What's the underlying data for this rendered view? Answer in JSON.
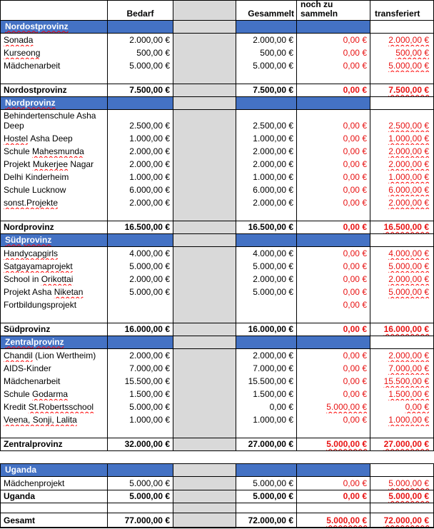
{
  "colors": {
    "band_blue": "#4472c4",
    "spacer_gray": "#d9d9d9",
    "value_red": "#e81313",
    "squiggle_red": "#ff0000"
  },
  "column_headers": {
    "bedarf": "Bedarf",
    "gesammelt": "Gesammelt",
    "noch_zu_sammeln": "noch zu sammeln",
    "transferiert": "transferiert"
  },
  "sections": [
    {
      "title": "Nordostprovinz",
      "title_wavy": true,
      "gap_before": false,
      "blank_before_total": true,
      "rows": [
        {
          "name": [
            {
              "text": "Sonada",
              "wavy": true
            }
          ],
          "bedarf": "2.000,00 €",
          "gesammelt": "2.000,00 €",
          "noch": "0,00 €",
          "noch_wavy": false,
          "transferiert": "2.000,00 €",
          "transferiert_wavy": true
        },
        {
          "name": [
            {
              "text": "Kurseong",
              "wavy": true
            }
          ],
          "bedarf": "500,00 €",
          "gesammelt": "500,00 €",
          "noch": "0,00 €",
          "noch_wavy": false,
          "transferiert": "500,00 €",
          "transferiert_wavy": true
        },
        {
          "name": [
            {
              "text": "Mädchenarbeit",
              "wavy": false
            }
          ],
          "bedarf": "5.000,00 €",
          "gesammelt": "5.000,00 €",
          "noch": "0,00 €",
          "noch_wavy": false,
          "transferiert": "5.000,00 €",
          "transferiert_wavy": true
        }
      ],
      "total": {
        "label": "Nordostprovinz",
        "bedarf": "7.500,00 €",
        "gesammelt": "7.500,00 €",
        "noch": "0,00 €",
        "noch_wavy": false,
        "transferiert": "7.500,00 €",
        "transferiert_wavy": true
      }
    },
    {
      "title": "Nordprovinz",
      "title_wavy": true,
      "gap_before": false,
      "blank_before_total": true,
      "rows": [
        {
          "name": [
            {
              "text": "Behindertenschule Asha Deep",
              "wavy": false
            }
          ],
          "tall": true,
          "bedarf": "2.500,00 €",
          "gesammelt": "2.500,00 €",
          "noch": "0,00 €",
          "noch_wavy": false,
          "transferiert": "2.500,00 €",
          "transferiert_wavy": true
        },
        {
          "name": [
            {
              "text": "Hostel",
              "wavy": true
            },
            {
              "text": " Asha Deep",
              "wavy": false
            }
          ],
          "bedarf": "1.000,00 €",
          "gesammelt": "1.000,00 €",
          "noch": "0,00 €",
          "noch_wavy": false,
          "transferiert": "1.000,00 €",
          "transferiert_wavy": true
        },
        {
          "name": [
            {
              "text": "Schule ",
              "wavy": false
            },
            {
              "text": "Mahesmunda",
              "wavy": true
            }
          ],
          "bedarf": "2.000,00 €",
          "gesammelt": "2.000,00 €",
          "noch": "0,00 €",
          "noch_wavy": false,
          "transferiert": "2.000,00 €",
          "transferiert_wavy": true
        },
        {
          "name": [
            {
              "text": "Projekt ",
              "wavy": false
            },
            {
              "text": "Mukerjee",
              "wavy": true
            },
            {
              "text": " Nagar",
              "wavy": false
            }
          ],
          "bedarf": "2.000,00 €",
          "gesammelt": "2.000,00 €",
          "noch": "0,00 €",
          "noch_wavy": false,
          "transferiert": "2.000,00 €",
          "transferiert_wavy": true
        },
        {
          "name": [
            {
              "text": "Delhi Kinderheim",
              "wavy": false
            }
          ],
          "bedarf": "1.000,00 €",
          "gesammelt": "1.000,00 €",
          "noch": "0,00 €",
          "noch_wavy": false,
          "transferiert": "1.000,00 €",
          "transferiert_wavy": true
        },
        {
          "name": [
            {
              "text": "Schule Lucknow",
              "wavy": false
            }
          ],
          "bedarf": "6.000,00 €",
          "gesammelt": "6.000,00 €",
          "noch": "0,00 €",
          "noch_wavy": false,
          "transferiert": "6.000,00 €",
          "transferiert_wavy": true
        },
        {
          "name": [
            {
              "text": "sonst.Projekte",
              "wavy": true
            }
          ],
          "bedarf": "2.000,00 €",
          "gesammelt": "2.000,00 €",
          "noch": "0,00 €",
          "noch_wavy": false,
          "transferiert": "2.000,00 €",
          "transferiert_wavy": true
        }
      ],
      "total": {
        "label": "Nordprovinz",
        "bedarf": "16.500,00 €",
        "gesammelt": "16.500,00 €",
        "noch": "0,00 €",
        "noch_wavy": false,
        "transferiert": "16.500,00 €",
        "transferiert_wavy": true
      }
    },
    {
      "title": "Südprovinz",
      "title_wavy": true,
      "gap_before": false,
      "blank_before_total": true,
      "rows": [
        {
          "name": [
            {
              "text": "Handycapgirls",
              "wavy": true
            }
          ],
          "bedarf": "4.000,00 €",
          "gesammelt": "4.000,00 €",
          "noch": "0,00 €",
          "noch_wavy": false,
          "transferiert": "4.000,00 €",
          "transferiert_wavy": true
        },
        {
          "name": [
            {
              "text": "Satgayamaprojekt",
              "wavy": true
            }
          ],
          "bedarf": "5.000,00 €",
          "gesammelt": "5.000,00 €",
          "noch": "0,00 €",
          "noch_wavy": false,
          "transferiert": "5.000,00 €",
          "transferiert_wavy": true
        },
        {
          "name": [
            {
              "text": "School in ",
              "wavy": false
            },
            {
              "text": "Orikottai",
              "wavy": true
            }
          ],
          "bedarf": "2.000,00 €",
          "gesammelt": "2.000,00 €",
          "noch": "0,00 €",
          "noch_wavy": false,
          "transferiert": "2.000,00 €",
          "transferiert_wavy": true
        },
        {
          "name": [
            {
              "text": "Projekt Asha ",
              "wavy": false
            },
            {
              "text": "Niketan",
              "wavy": true
            }
          ],
          "bedarf": "5.000,00 €",
          "gesammelt": "5.000,00 €",
          "noch": "0,00 €",
          "noch_wavy": false,
          "transferiert": "5.000,00 €",
          "transferiert_wavy": true
        },
        {
          "name": [
            {
              "text": "Fortbildungsprojekt",
              "wavy": false
            }
          ],
          "bedarf": "",
          "gesammelt": "",
          "noch": "0,00 €",
          "noch_wavy": false,
          "transferiert": "",
          "transferiert_wavy": false
        }
      ],
      "total": {
        "label": "Südprovinz",
        "bedarf": "16.000,00 €",
        "gesammelt": "16.000,00 €",
        "noch": "0,00 €",
        "noch_wavy": false,
        "transferiert": "16.000,00 €",
        "transferiert_wavy": true
      }
    },
    {
      "title": "Zentralprovinz",
      "title_wavy": true,
      "gap_before": false,
      "blank_before_total": true,
      "rows": [
        {
          "name": [
            {
              "text": "Chandil",
              "wavy": true
            },
            {
              "text": " (Lion Wertheim)",
              "wavy": false
            }
          ],
          "bedarf": "2.000,00 €",
          "gesammelt": "2.000,00 €",
          "noch": "0,00 €",
          "noch_wavy": false,
          "transferiert": "2.000,00 €",
          "transferiert_wavy": true
        },
        {
          "name": [
            {
              "text": "AIDS-Kinder",
              "wavy": false
            }
          ],
          "bedarf": "7.000,00 €",
          "gesammelt": "7.000,00 €",
          "noch": "0,00 €",
          "noch_wavy": false,
          "transferiert": "7.000,00 €",
          "transferiert_wavy": true
        },
        {
          "name": [
            {
              "text": "Mädchenarbeit",
              "wavy": false
            }
          ],
          "bedarf": "15.500,00 €",
          "gesammelt": "15.500,00 €",
          "noch": "0,00 €",
          "noch_wavy": false,
          "transferiert": "15.500,00 €",
          "transferiert_wavy": true
        },
        {
          "name": [
            {
              "text": "Schule ",
              "wavy": false
            },
            {
              "text": "Godarma",
              "wavy": true
            }
          ],
          "bedarf": "1.500,00 €",
          "gesammelt": "1.500,00 €",
          "noch": "0,00 €",
          "noch_wavy": false,
          "transferiert": "1.500,00 €",
          "transferiert_wavy": true
        },
        {
          "name": [
            {
              "text": "Kredit ",
              "wavy": false
            },
            {
              "text": "St.Robertsschool",
              "wavy": true
            }
          ],
          "bedarf": "5.000,00 €",
          "gesammelt": "0,00 €",
          "noch": "5.000,00 €",
          "noch_wavy": true,
          "transferiert": "0,00 €",
          "transferiert_wavy": true
        },
        {
          "name": [
            {
              "text": "Veena, Sonji, Lalita",
              "wavy": true
            }
          ],
          "bedarf": "1.000,00 €",
          "gesammelt": "1.000,00 €",
          "noch": "0,00 €",
          "noch_wavy": false,
          "transferiert": "1.000,00 €",
          "transferiert_wavy": true
        }
      ],
      "total": {
        "label": "Zentralprovinz",
        "bedarf": "32.000,00 €",
        "gesammelt": "27.000,00 €",
        "noch": "5.000,00 €",
        "noch_wavy": true,
        "transferiert": "27.000,00 €",
        "transferiert_wavy": true
      }
    },
    {
      "title": "Uganda",
      "title_wavy": false,
      "gap_before": true,
      "blank_before_total": false,
      "rows": [
        {
          "name": [
            {
              "text": "Mädchenprojekt",
              "wavy": false
            }
          ],
          "bedarf": "5.000,00 €",
          "gesammelt": "5.000,00 €",
          "noch": "0,00 €",
          "noch_wavy": false,
          "transferiert": "5.000,00 €",
          "transferiert_wavy": true
        }
      ],
      "total": {
        "label": "Uganda",
        "bedarf": "5.000,00 €",
        "gesammelt": "5.000,00 €",
        "noch": "0,00 €",
        "noch_wavy": false,
        "transferiert": "5.000,00 €",
        "transferiert_wavy": true
      }
    }
  ],
  "grand_total": {
    "label": "Gesamt",
    "bedarf": "77.000,00 €",
    "gesammelt": "72.000,00 €",
    "noch": "5.000,00 €",
    "noch_wavy": true,
    "transferiert": "72.000,00 €",
    "transferiert_wavy": true
  }
}
